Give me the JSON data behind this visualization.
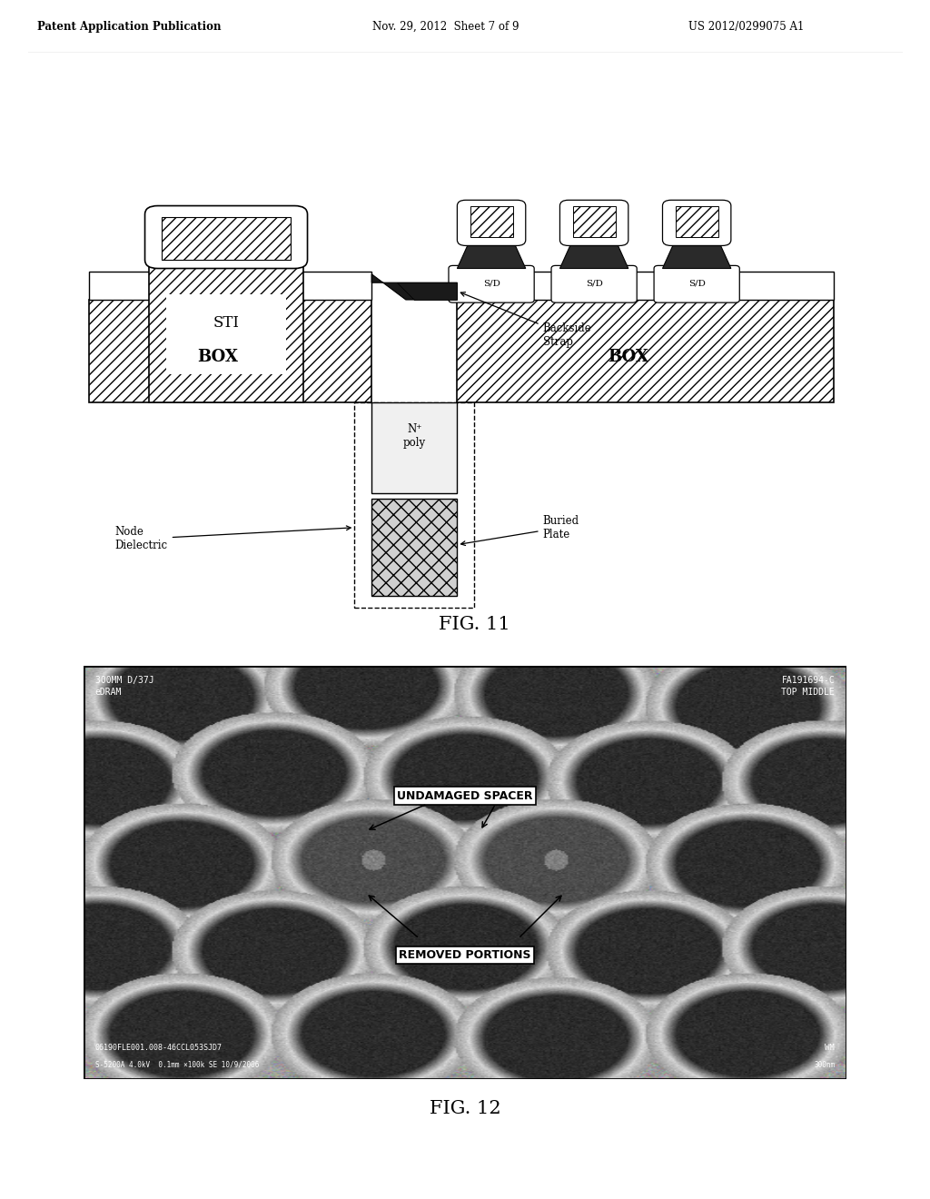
{
  "header_left": "Patent Application Publication",
  "header_center": "Nov. 29, 2012  Sheet 7 of 9",
  "header_right": "US 2012/0299075 A1",
  "fig11_caption": "FIG. 11",
  "fig12_caption": "FIG. 12",
  "bg_color": "#ffffff",
  "label_STI": "STI",
  "label_BOX_left": "BOX",
  "label_BOX_right": "BOX",
  "label_SD": "S/D",
  "label_Npoly": "N⁺\npoly",
  "label_backside": "Backside\nStrap",
  "label_buried": "Buried\nPlate",
  "label_node": "Node\nDielectric",
  "sem_top_left": "300MM D/37J\neDRAM",
  "sem_top_right": "FA191694-C\nTOP MIDDLE",
  "sem_bot_left": "06190FLE001.008-46CCL053SJD7",
  "sem_bot_left2": "S-5200A 4.0kV  0.1mm ×100k SE 10/9/2006",
  "sem_bot_right": "WM",
  "sem_bot_right2": "300nm",
  "label_undamaged": "UNDAMAGED SPACER",
  "label_removed": "REMOVED PORTIONS"
}
